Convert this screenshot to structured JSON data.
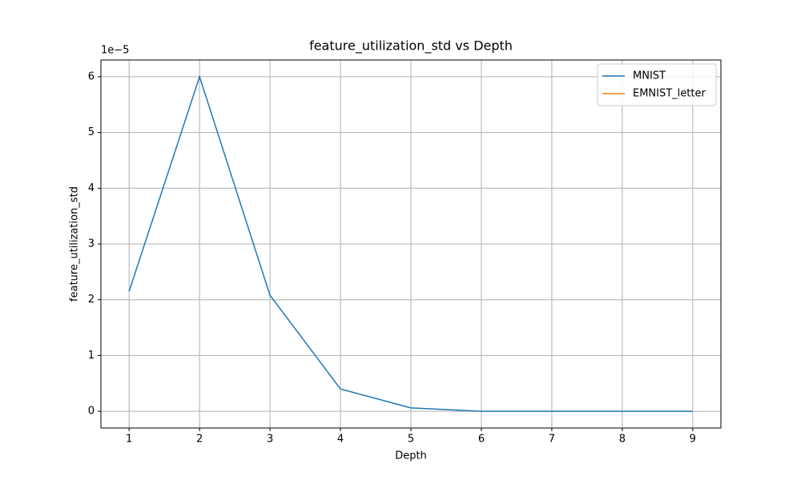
{
  "chart_data": {
    "type": "line",
    "title": "feature_utilization_std vs Depth",
    "x_label": "Depth",
    "y_label": "feature_utilization_std",
    "y_offset_label": "1e−5",
    "x": [
      1,
      2,
      3,
      4,
      5,
      6,
      7,
      8,
      9
    ],
    "series": [
      {
        "name": "MNIST",
        "color": "#1f77b4",
        "values": [
          2.15,
          6.0,
          2.08,
          0.4,
          0.06,
          0,
          0,
          0,
          0
        ]
      },
      {
        "name": "EMNIST_letter",
        "color": "#ff7f0e",
        "values": [
          null,
          null,
          null,
          null,
          null,
          null,
          null,
          null,
          null
        ]
      }
    ],
    "xlim": [
      0.6,
      9.4
    ],
    "ylim": [
      -0.3,
      6.3
    ],
    "xticks": [
      1,
      2,
      3,
      4,
      5,
      6,
      7,
      8,
      9
    ],
    "yticks": [
      0,
      1,
      2,
      3,
      4,
      5,
      6
    ],
    "grid": true,
    "legend": "upper right"
  }
}
